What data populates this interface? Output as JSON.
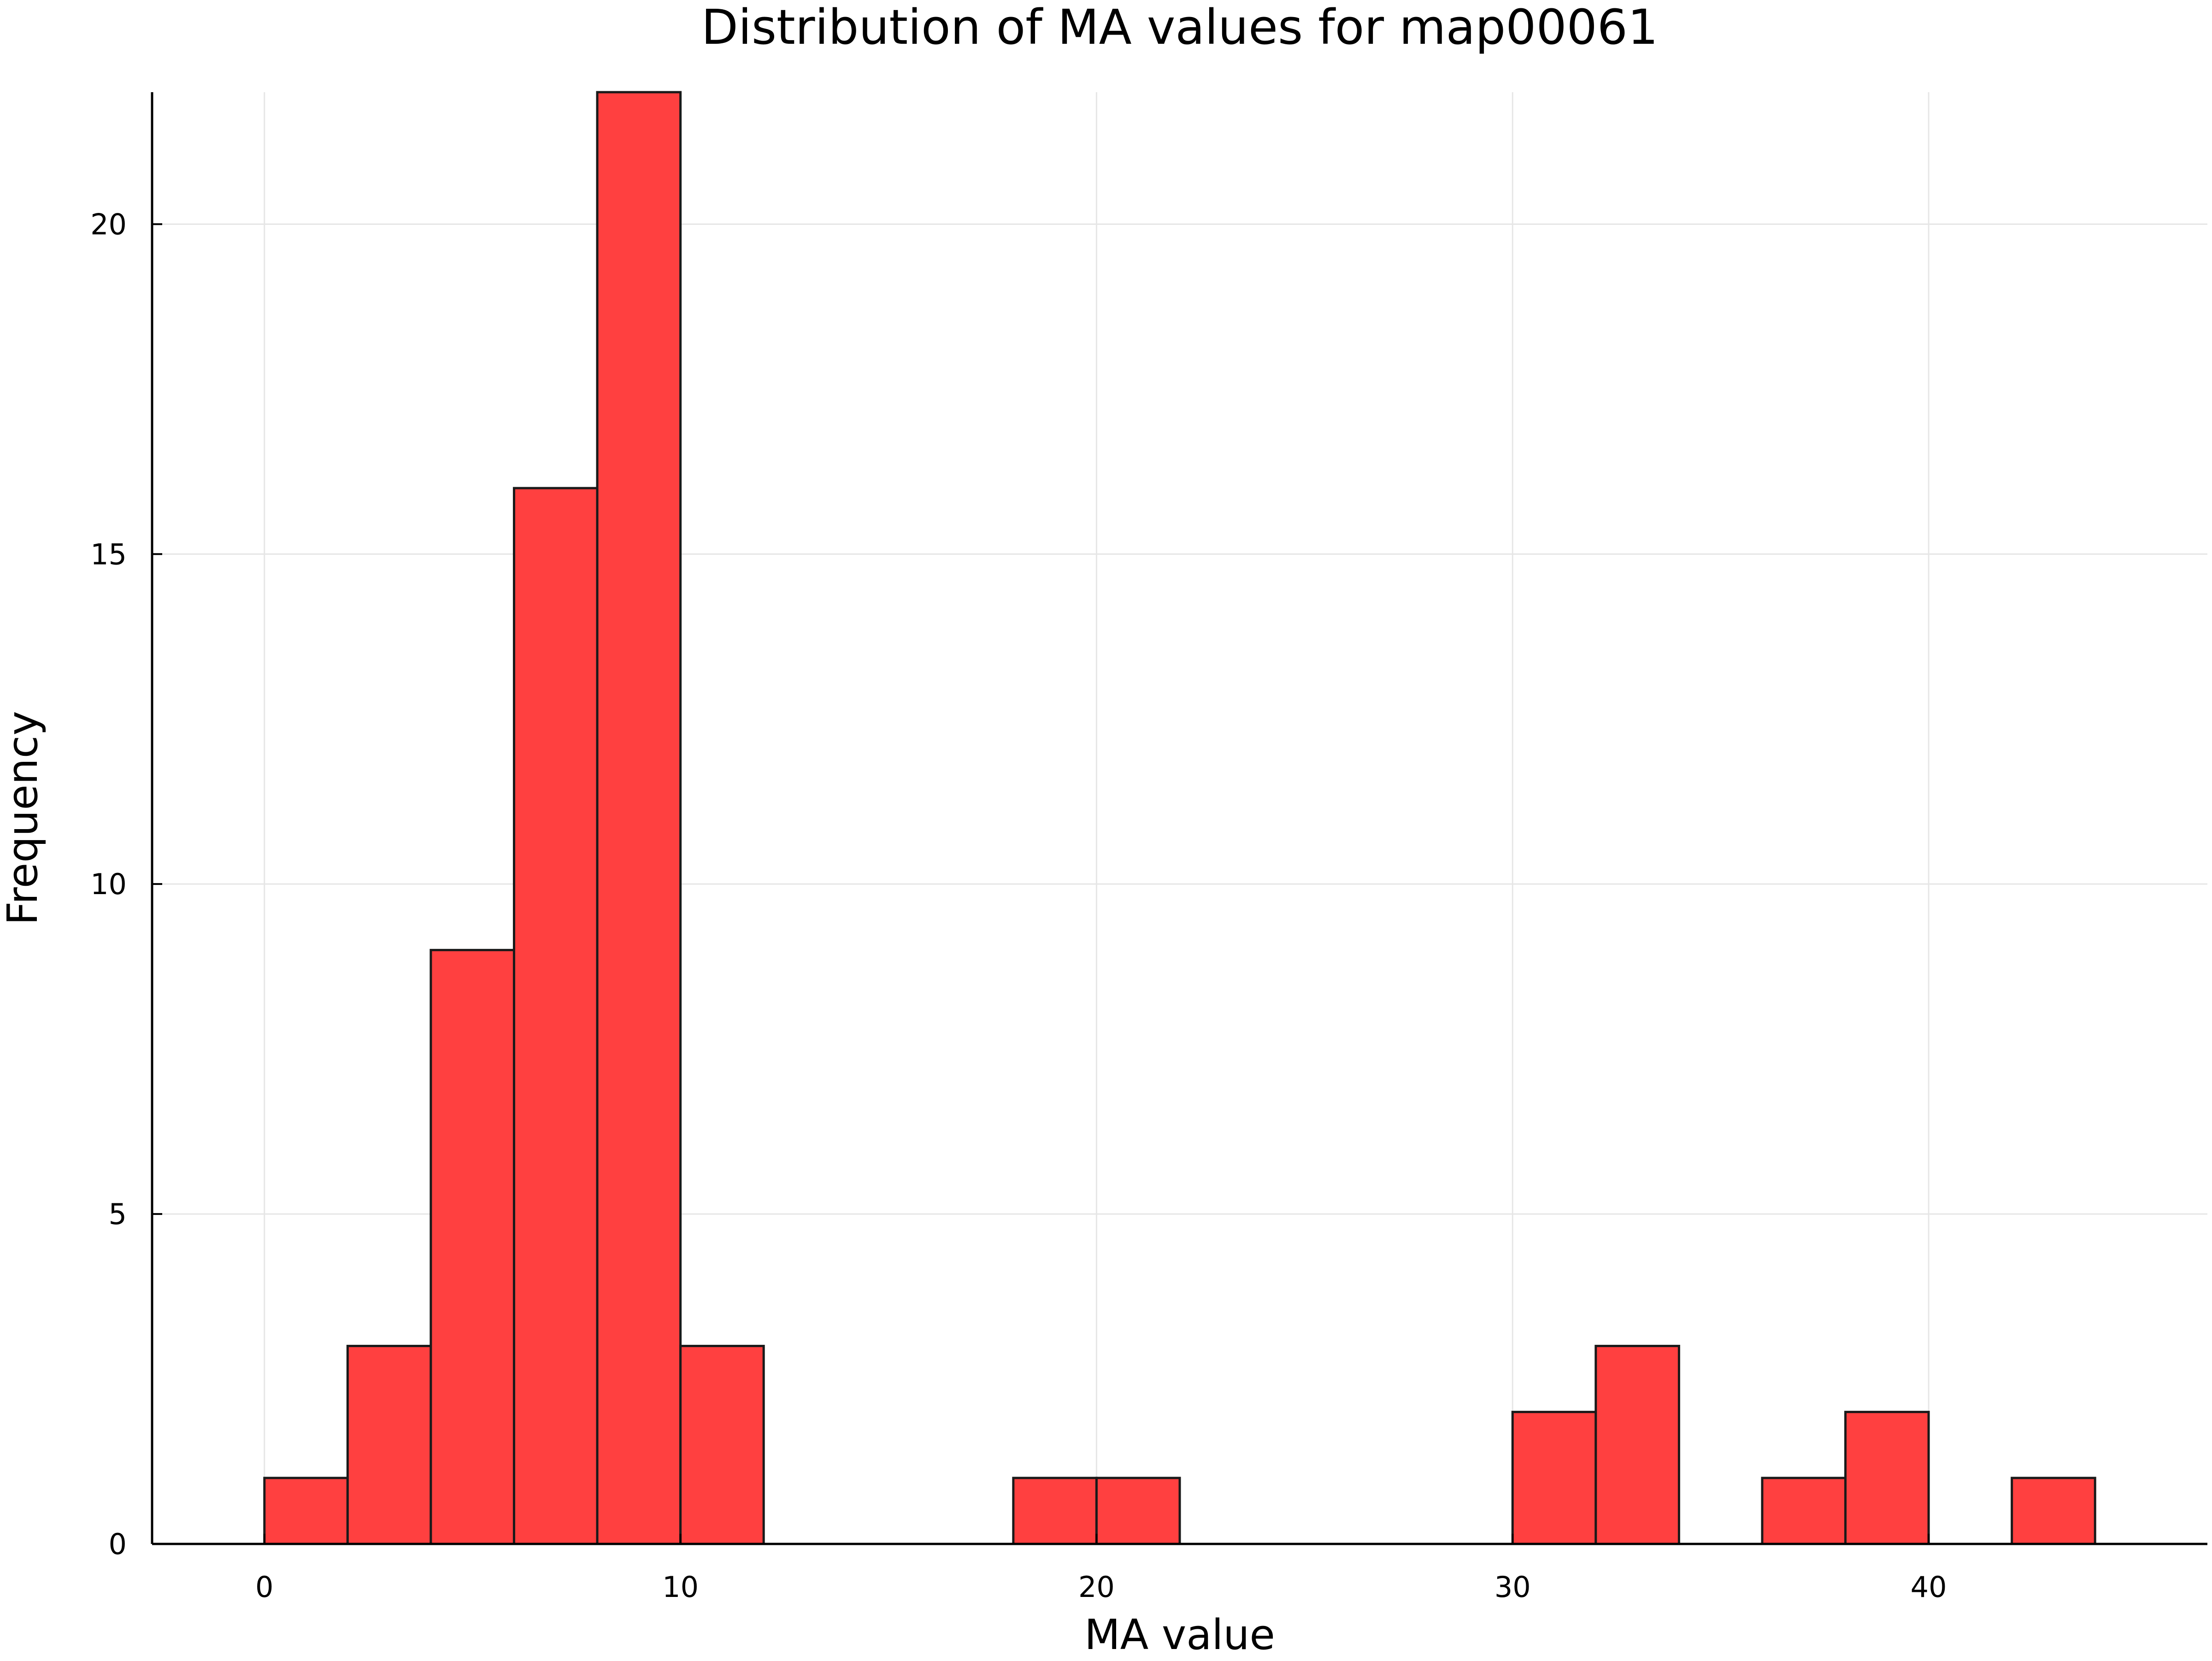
{
  "chart_data": {
    "type": "bar",
    "title": "Distribution of MA values for map00061",
    "xlabel": "MA value",
    "ylabel": "Frequency",
    "xlim": [
      -2.7,
      46.7
    ],
    "ylim": [
      0,
      22
    ],
    "xticks": [
      0,
      10,
      20,
      30,
      40
    ],
    "yticks": [
      0,
      5,
      10,
      15,
      20
    ],
    "grid": true,
    "legend": "none",
    "bin_width": 2,
    "bins": [
      {
        "x0": 0,
        "x1": 2,
        "count": 1
      },
      {
        "x0": 2,
        "x1": 4,
        "count": 3
      },
      {
        "x0": 4,
        "x1": 6,
        "count": 9
      },
      {
        "x0": 6,
        "x1": 8,
        "count": 16
      },
      {
        "x0": 8,
        "x1": 10,
        "count": 22
      },
      {
        "x0": 10,
        "x1": 12,
        "count": 3
      },
      {
        "x0": 12,
        "x1": 14,
        "count": 0
      },
      {
        "x0": 14,
        "x1": 16,
        "count": 0
      },
      {
        "x0": 16,
        "x1": 18,
        "count": 0
      },
      {
        "x0": 18,
        "x1": 20,
        "count": 1
      },
      {
        "x0": 20,
        "x1": 22,
        "count": 1
      },
      {
        "x0": 22,
        "x1": 24,
        "count": 0
      },
      {
        "x0": 24,
        "x1": 26,
        "count": 0
      },
      {
        "x0": 26,
        "x1": 28,
        "count": 0
      },
      {
        "x0": 28,
        "x1": 30,
        "count": 0
      },
      {
        "x0": 30,
        "x1": 32,
        "count": 2
      },
      {
        "x0": 32,
        "x1": 34,
        "count": 3
      },
      {
        "x0": 34,
        "x1": 36,
        "count": 0
      },
      {
        "x0": 36,
        "x1": 38,
        "count": 1
      },
      {
        "x0": 38,
        "x1": 40,
        "count": 2
      },
      {
        "x0": 40,
        "x1": 42,
        "count": 0
      },
      {
        "x0": 42,
        "x1": 44,
        "count": 1
      }
    ],
    "colors": {
      "bar_fill": "#ff4040",
      "bar_stroke": "#1a1a1a",
      "grid": "#e6e6e6",
      "axis": "#000000"
    }
  }
}
